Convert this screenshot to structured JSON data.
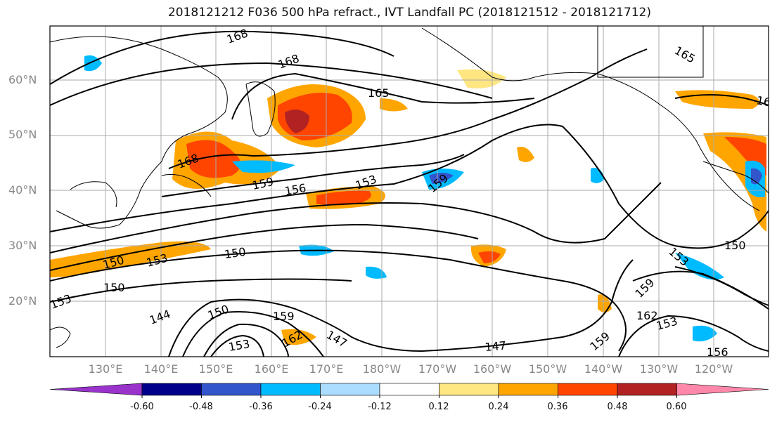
{
  "title": "2018121212 F036 500 hPa refract., IVT Landfall PC (2018121512 - 2018121712)",
  "lat_labels": [
    "60°N",
    "50°N",
    "40°N",
    "30°N",
    "20°N"
  ],
  "lon_labels": [
    "130°E",
    "140°E",
    "150°E",
    "160°E",
    "170°E",
    "180°W",
    "170°W",
    "160°W",
    "150°W",
    "140°W",
    "130°W",
    "120°W"
  ],
  "contour_labels": [
    "168",
    "168",
    "165",
    "168",
    "159",
    "156",
    "153",
    "159",
    "150",
    "150",
    "153",
    "150",
    "153",
    "150",
    "144",
    "150",
    "159",
    "162",
    "147",
    "147",
    "153",
    "159",
    "162",
    "153",
    "156",
    "153",
    "159",
    "165",
    "16"
  ],
  "colorbar": {
    "ticks": [
      "-0.60",
      "-0.48",
      "-0.36",
      "-0.24",
      "-0.12",
      "0.12",
      "0.24",
      "0.36",
      "0.48",
      "0.60"
    ],
    "colors": [
      "#9933cc",
      "#000088",
      "#3355cc",
      "#00bbff",
      "#aaddff",
      "#ffffff",
      "#ffe680",
      "#ffa500",
      "#ff4500",
      "#b22222",
      "#ff88aa"
    ]
  },
  "colors": {
    "land": "#000000",
    "contour": "#000000",
    "grid": "#aaaaaa"
  }
}
